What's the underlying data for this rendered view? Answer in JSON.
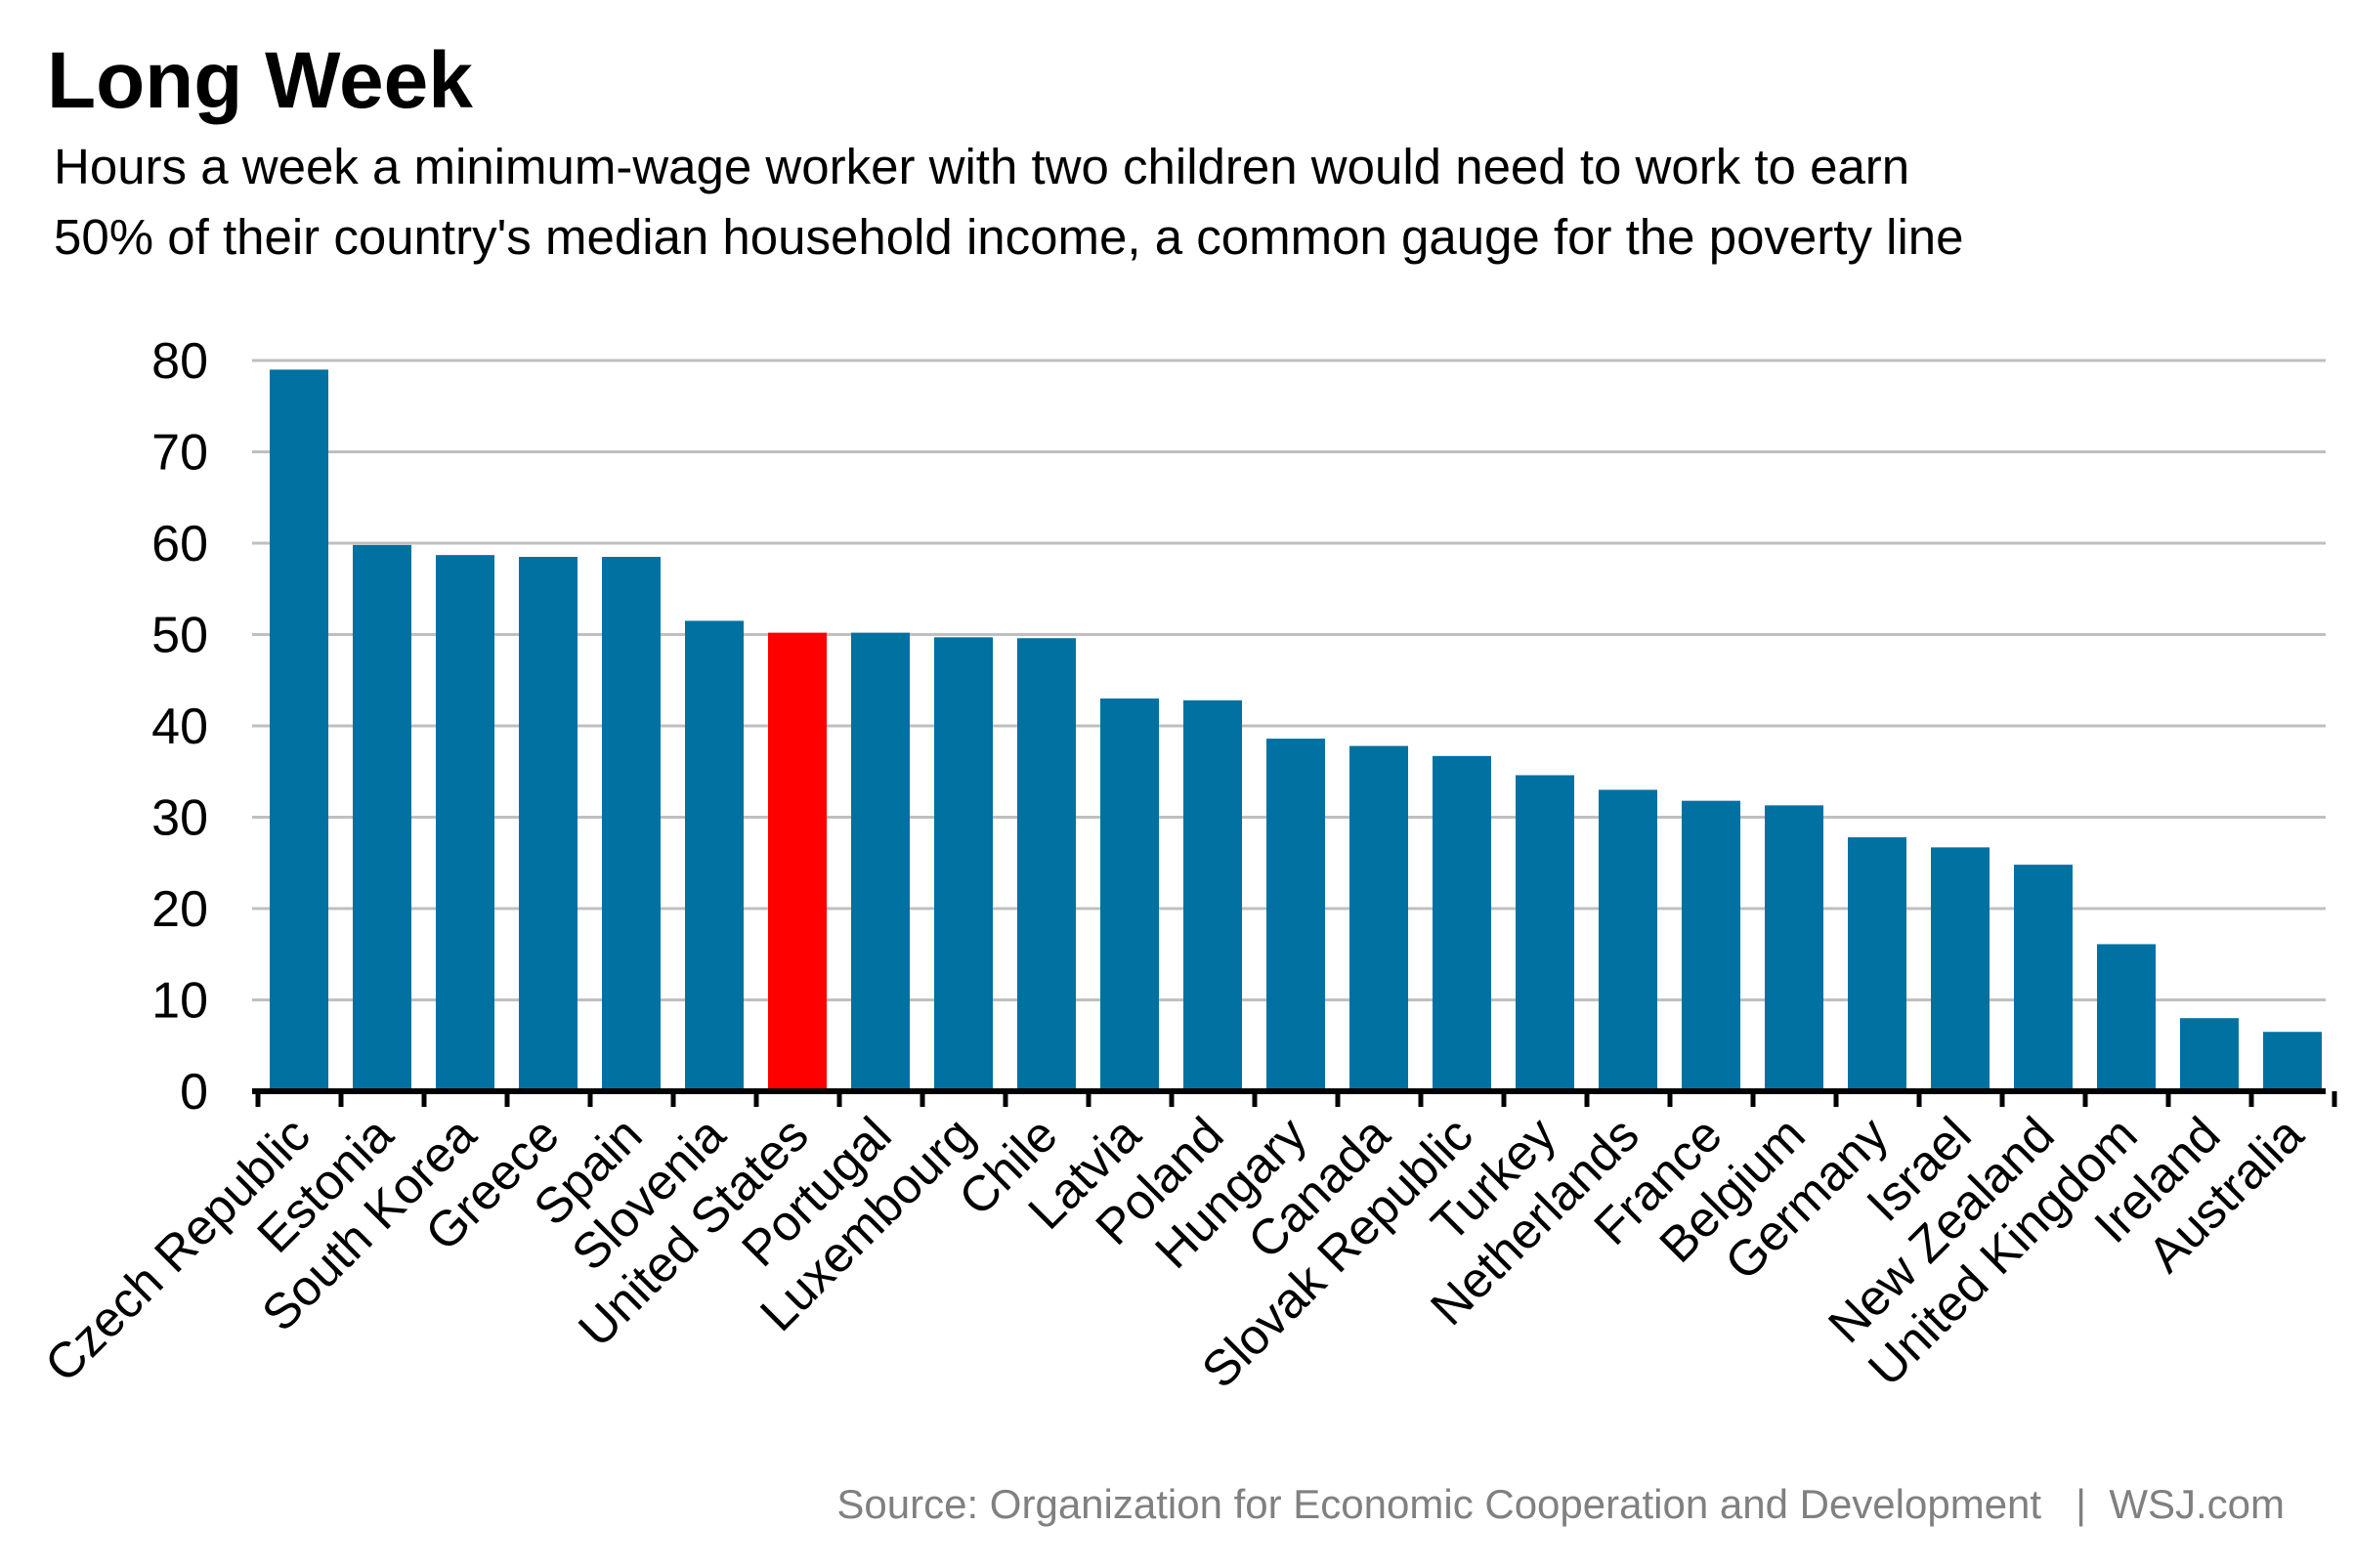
{
  "chart_data": {
    "type": "bar",
    "title": "Long Week",
    "subtitle_lines": [
      "Hours a week a minimum-wage worker with two children would need to work to earn",
      "50% of their country's median household income, a common gauge for the poverty line"
    ],
    "categories": [
      "Czech Republic",
      "Estonia",
      "South Korea",
      "Greece",
      "Spain",
      "Slovenia",
      "United States",
      "Portugal",
      "Luxembourg",
      "Chile",
      "Latvia",
      "Poland",
      "Hungary",
      "Canada",
      "Slovak Republic",
      "Turkey",
      "Netherlands",
      "France",
      "Belgium",
      "Germany",
      "Israel",
      "New Zealand",
      "United Kingdom",
      "Ireland",
      "Australia"
    ],
    "values": [
      79,
      59.8,
      58.7,
      58.5,
      58.5,
      51.5,
      50.2,
      50.2,
      49.7,
      49.6,
      43,
      42.8,
      38.6,
      37.8,
      36.7,
      34.6,
      33,
      31.8,
      31.3,
      27.8,
      26.7,
      24.8,
      16.1,
      8,
      6.5
    ],
    "highlight": "United States",
    "colors": {
      "bar": "#0071A1",
      "highlight": "#FF0000",
      "grid": "#BFBFBF",
      "axis": "#000000",
      "source_text": "#808080"
    },
    "ylim": [
      0,
      80
    ],
    "yticks": [
      0,
      10,
      20,
      30,
      40,
      50,
      60,
      70,
      80
    ],
    "grid": true,
    "xlabel": "",
    "ylabel": "",
    "source": "Source: Organization for Economic Cooperation and Development   |  WSJ.com"
  }
}
